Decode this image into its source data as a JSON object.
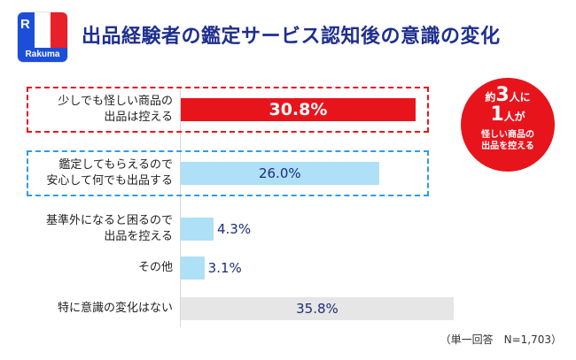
{
  "brand": {
    "logo_text": "Rakuma",
    "logo_glyph": "R"
  },
  "title": "出品経験者の鑑定サービス認知後の意識の変化",
  "callout": {
    "line1_pre": "約",
    "line1_num": "3",
    "line1_mid": "人",
    "line1_post": "に",
    "line2_num": "1",
    "line2_mid": "人",
    "line2_post": "が",
    "line3": "怪しい商品の",
    "line4": "出品を控える"
  },
  "note": "（単一回答　N=1,703）",
  "colors": {
    "title": "#1e2f8f",
    "highlight_red": "#e8141c",
    "highlight_blue": "#2f9de0",
    "bar_blue": "#aee0f8",
    "bar_gray": "#e6e6e6"
  },
  "chart_data": {
    "type": "bar",
    "orientation": "horizontal",
    "categories": [
      "少しでも怪しい商品の\n出品は控える",
      "鑑定してもらえるので\n安心して何でも出品する",
      "基準外になると困るので\n出品を控える",
      "その他",
      "特に意識の変化はない"
    ],
    "values": [
      30.8,
      26.0,
      4.3,
      3.1,
      35.8
    ],
    "value_labels": [
      "30.8%",
      "26.0%",
      "4.3%",
      "3.1%",
      "35.8%"
    ],
    "xlim": [
      0,
      40
    ],
    "highlighted": [
      "red",
      "blue",
      null,
      null,
      null
    ],
    "grid": false
  }
}
